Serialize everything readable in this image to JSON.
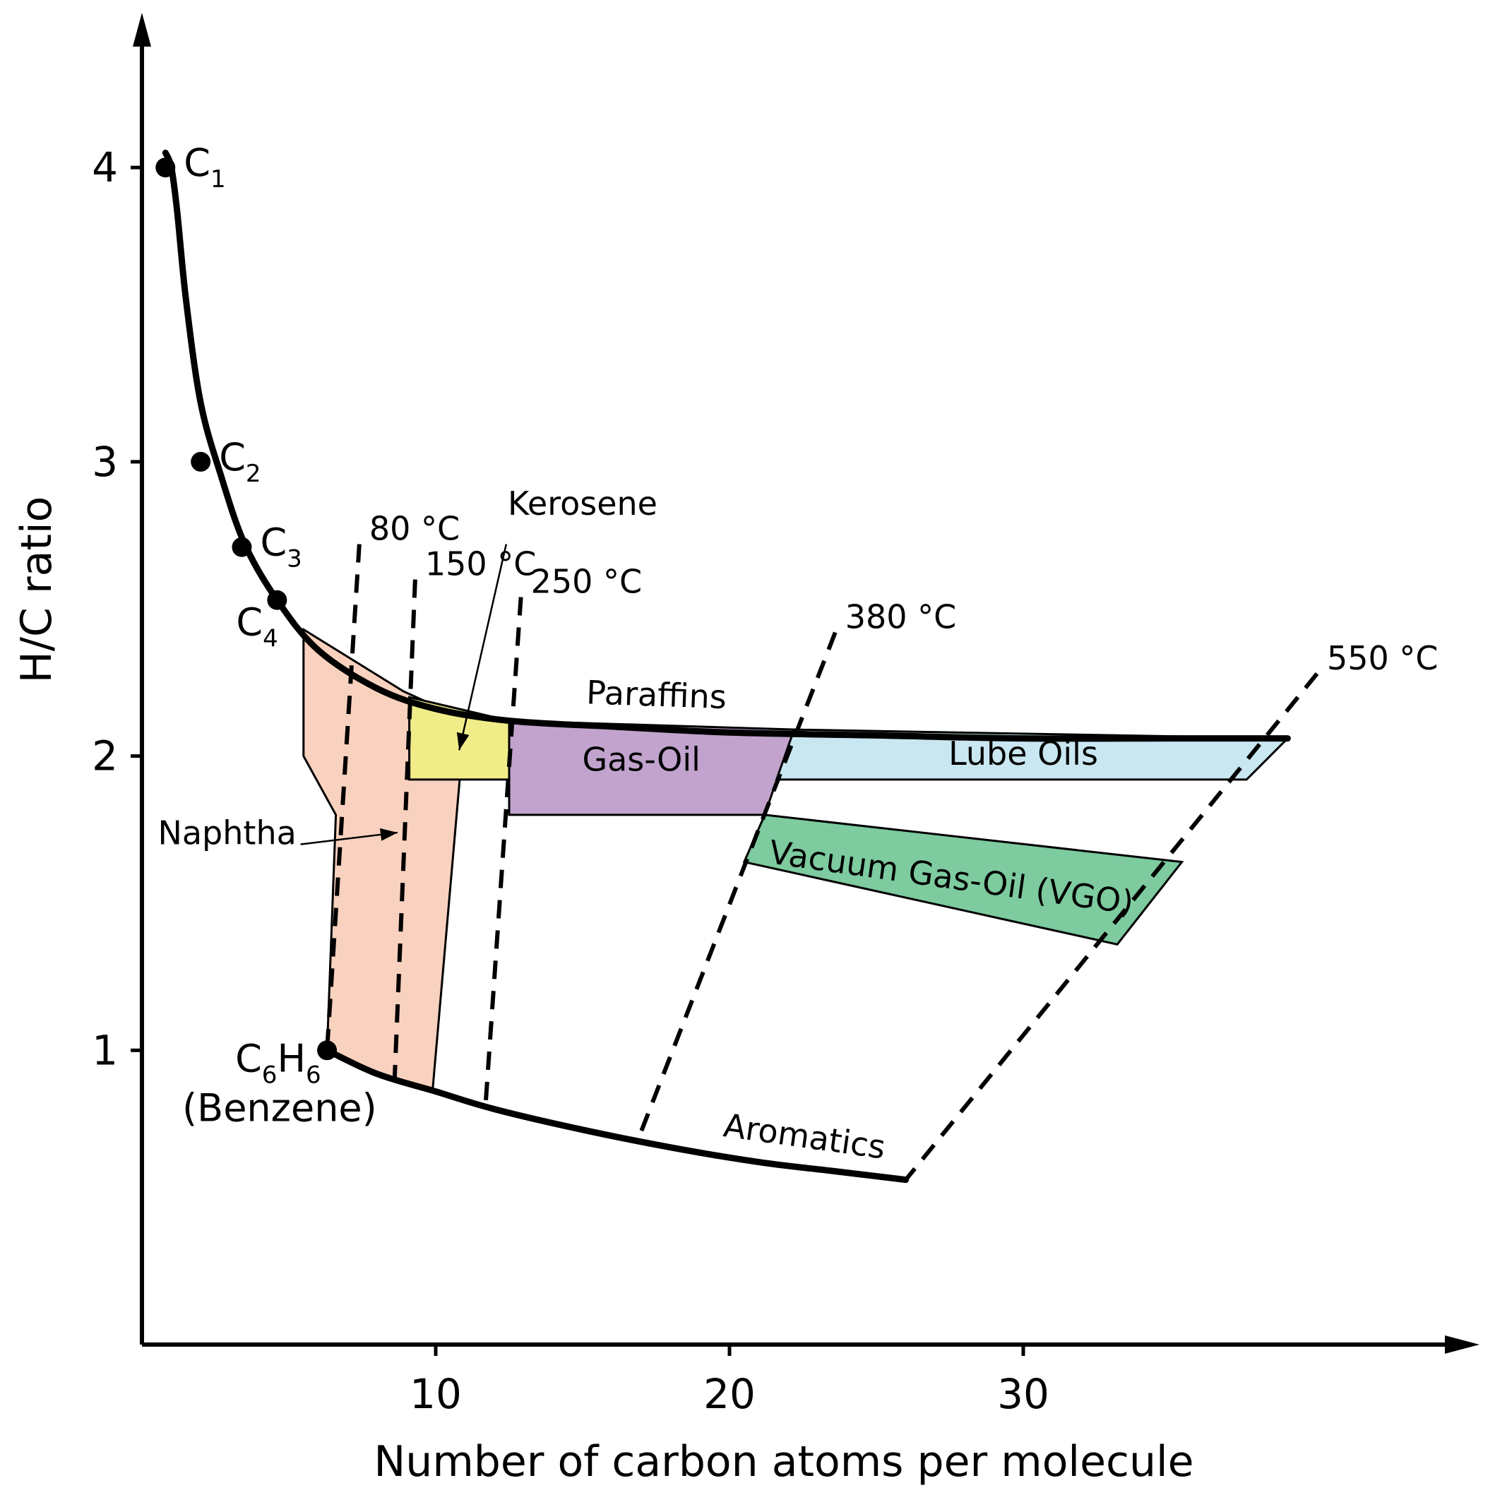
{
  "chart_data": {
    "type": "line",
    "title": "",
    "xlabel": "Number of carbon atoms per molecule",
    "ylabel": "H/C ratio",
    "xlim": [
      0,
      45
    ],
    "ylim": [
      0,
      4.5
    ],
    "x_ticks": [
      {
        "value": 10,
        "label": "10"
      },
      {
        "value": 20,
        "label": "20"
      },
      {
        "value": 30,
        "label": "30"
      }
    ],
    "y_ticks": [
      {
        "value": 1,
        "label": "1"
      },
      {
        "value": 2,
        "label": "2"
      },
      {
        "value": 3,
        "label": "3"
      },
      {
        "value": 4,
        "label": "4"
      }
    ],
    "grid": false,
    "series": [
      {
        "name": "Paraffins",
        "x": [
          0.8,
          1.0,
          1.2,
          1.5,
          2.0,
          2.7,
          3.5,
          4.6,
          6.0,
          8.0,
          10.0,
          12.5,
          16.0,
          20.0,
          25.0,
          30.0,
          35.0,
          39.0
        ],
        "y": [
          4.05,
          4.0,
          3.85,
          3.55,
          3.2,
          2.95,
          2.72,
          2.53,
          2.36,
          2.23,
          2.16,
          2.12,
          2.1,
          2.08,
          2.07,
          2.06,
          2.06,
          2.06
        ]
      },
      {
        "name": "Aromatics",
        "x": [
          6.3,
          8.0,
          10.0,
          12.0,
          15.0,
          18.0,
          21.0,
          23.5,
          26.0
        ],
        "y": [
          1.0,
          0.92,
          0.86,
          0.8,
          0.73,
          0.67,
          0.62,
          0.59,
          0.56
        ]
      }
    ],
    "points": [
      {
        "label": "C",
        "sub": "1",
        "x": 0.8,
        "y": 4.0
      },
      {
        "label": "C",
        "sub": "2",
        "x": 2.0,
        "y": 3.0
      },
      {
        "label": "C",
        "sub": "3",
        "x": 3.4,
        "y": 2.71
      },
      {
        "label": "C",
        "sub": "4",
        "x": 4.6,
        "y": 2.53
      },
      {
        "label": "C",
        "sub": "6",
        "label2": "H",
        "sub2": "6",
        "caption": "(Benzene)",
        "x": 6.3,
        "y": 1.0
      }
    ],
    "boiling_lines": [
      {
        "label": "80 °C",
        "top": [
          7.4,
          2.72
        ],
        "bottom": [
          6.3,
          1.0
        ]
      },
      {
        "label": "150 °C",
        "top": [
          9.3,
          2.6
        ],
        "bottom": [
          8.6,
          0.9
        ]
      },
      {
        "label": "250 °C",
        "top": [
          12.9,
          2.54
        ],
        "bottom": [
          11.7,
          0.82
        ]
      },
      {
        "label": "380 °C",
        "top": [
          23.6,
          2.42
        ],
        "bottom": [
          16.9,
          0.7
        ]
      },
      {
        "label": "550 °C",
        "top": [
          40.0,
          2.28
        ],
        "bottom": [
          26.0,
          0.56
        ]
      }
    ],
    "regions": [
      {
        "name": "Naphtha",
        "color": "#f9d2bf",
        "polygon": [
          [
            5.5,
            2.43
          ],
          [
            8.9,
            2.22
          ],
          [
            10.0,
            2.17
          ],
          [
            11.0,
            2.13
          ],
          [
            9.9,
            0.87
          ],
          [
            8.0,
            0.92
          ],
          [
            6.3,
            1.0
          ],
          [
            6.6,
            1.8
          ],
          [
            5.5,
            2.0
          ]
        ]
      },
      {
        "name": "Kerosene",
        "color": "#f0ec88",
        "polygon": [
          [
            9.1,
            2.2
          ],
          [
            12.5,
            2.12
          ],
          [
            12.5,
            1.92
          ],
          [
            9.1,
            1.92
          ]
        ]
      },
      {
        "name": "Gas-Oil",
        "color": "#c1a3cd",
        "polygon": [
          [
            12.5,
            2.12
          ],
          [
            22.2,
            2.09
          ],
          [
            21.2,
            1.8
          ],
          [
            12.5,
            1.8
          ]
        ]
      },
      {
        "name": "Lube Oils",
        "color": "#c9e7f1",
        "polygon": [
          [
            22.2,
            2.09
          ],
          [
            39.0,
            2.06
          ],
          [
            37.6,
            1.92
          ],
          [
            21.6,
            1.92
          ]
        ]
      },
      {
        "name": "Vacuum Gas-Oil (VGO)",
        "color": "#7dcb9f",
        "polygon": [
          [
            21.2,
            1.8
          ],
          [
            35.4,
            1.64
          ],
          [
            33.2,
            1.36
          ],
          [
            20.5,
            1.64
          ]
        ]
      }
    ],
    "annotations": [
      {
        "text": "Paraffins",
        "x": 17.5,
        "y": 2.17,
        "rotate": 2
      },
      {
        "text": "Aromatics",
        "x": 22.5,
        "y": 0.67,
        "rotate": 8
      },
      {
        "text": "Kerosene",
        "x": 15.0,
        "y": 2.82
      },
      {
        "text": "Naphtha",
        "x": 2.9,
        "y": 1.7
      }
    ],
    "colors": {
      "naphtha": "#f9d2bf",
      "kerosene": "#f0ec88",
      "gas_oil": "#c1a3cd",
      "lube_oils": "#c9e7f1",
      "vgo": "#7dcb9f"
    }
  }
}
